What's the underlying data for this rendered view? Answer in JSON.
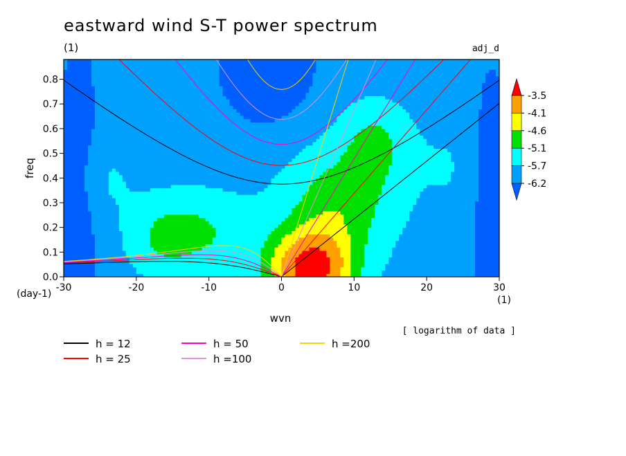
{
  "header": {
    "title": "eastward wind S-T power spectrum",
    "unit_left": "(1)",
    "tag_right": "adj_d"
  },
  "axes": {
    "x_label": "wvn",
    "y_label": "freq",
    "x_unit": "(1)",
    "y_unit": "(day-1)",
    "note": "[ logarithm of data ]"
  },
  "chart_data": {
    "type": "heatmap",
    "title": "eastward wind S-T power spectrum",
    "xlabel": "wvn",
    "ylabel": "freq",
    "xlim": [
      -30,
      30
    ],
    "ylim": [
      0,
      0.88
    ],
    "x_ticks": [
      -30,
      -20,
      -10,
      0,
      10,
      20,
      30
    ],
    "y_ticks": [
      0.0,
      0.1,
      0.2,
      0.3,
      0.4,
      0.5,
      0.6,
      0.7,
      0.8
    ],
    "grid": false,
    "colorbar": {
      "levels": [
        "-3.5",
        "-4.1",
        "-4.6",
        "-5.1",
        "-5.7",
        "-6.2"
      ],
      "colors": [
        "#ff0000",
        "#ffa000",
        "#ffff00",
        "#00e000",
        "#00ffff",
        "#00a0ff",
        "#0060ff"
      ]
    },
    "field": {
      "description_levels": "log10 power: peak near wvn 0 to 5, freq 0 to 0.1; minimum near wvn -2, freq 0.85",
      "peak": {
        "x": 3,
        "y": 0.05,
        "value": -3.3
      },
      "min": {
        "x": -2,
        "y": 0.85,
        "value": -6.4
      }
    },
    "dispersion_curves": {
      "legend": [
        {
          "label": "h = 12",
          "color": "#000000",
          "h": 12
        },
        {
          "label": "h = 25",
          "color": "#ff0000",
          "h": 25
        },
        {
          "label": "h = 50",
          "color": "#ff00c0",
          "h": 50
        },
        {
          "label": "h =100",
          "color": "#e090e0",
          "h": 100
        },
        {
          "label": "h =200",
          "color": "#ffd000",
          "h": 200
        }
      ]
    }
  }
}
